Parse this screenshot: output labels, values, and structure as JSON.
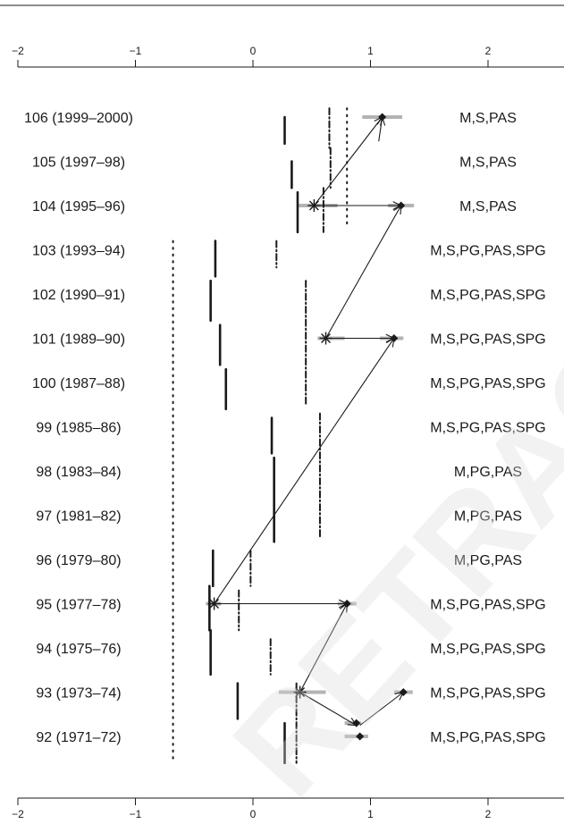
{
  "chart_data": {
    "type": "scatter",
    "title": "",
    "xlabel": "",
    "ylabel": "",
    "xlim": [
      -2,
      2.6
    ],
    "xticks": [
      -2,
      -1,
      0,
      1,
      2
    ],
    "rows": [
      {
        "label": "106 (1999–2000)",
        "passes": "M,S,PAS"
      },
      {
        "label": "105 (1997–98)",
        "passes": "M,S,PAS"
      },
      {
        "label": "104 (1995–96)",
        "passes": "M,S,PAS"
      },
      {
        "label": "103 (1993–94)",
        "passes": "M,S,PG,PAS,SPG"
      },
      {
        "label": "102 (1990–91)",
        "passes": "M,S,PG,PAS,SPG"
      },
      {
        "label": "101 (1989–90)",
        "passes": "M,S,PG,PAS,SPG"
      },
      {
        "label": "100 (1987–88)",
        "passes": "M,S,PG,PAS,SPG"
      },
      {
        "label": "99 (1985–86)",
        "passes": "M,S,PG,PAS,SPG"
      },
      {
        "label": "98 (1983–84)",
        "passes": "M,PG,PAS"
      },
      {
        "label": "97 (1981–82)",
        "passes": "M,PG,PAS"
      },
      {
        "label": "96 (1979–80)",
        "passes": "M,PG,PAS"
      },
      {
        "label": "95 (1977–78)",
        "passes": "M,S,PG,PAS,SPG"
      },
      {
        "label": "94 (1975–76)",
        "passes": "M,S,PG,PAS,SPG"
      },
      {
        "label": "93 (1973–74)",
        "passes": "M,S,PG,PAS,SPG"
      },
      {
        "label": "92 (1971–72)",
        "passes": "M,S,PG,PAS,SPG"
      }
    ],
    "segments": [
      {
        "style": "solid",
        "x": 0.27,
        "rows": [
          0,
          0.6
        ]
      },
      {
        "style": "solid",
        "x": 0.33,
        "rows": [
          1,
          1.6
        ]
      },
      {
        "style": "solid",
        "x": 0.38,
        "rows": [
          1.7,
          2.6
        ]
      },
      {
        "style": "solid",
        "x": -0.32,
        "rows": [
          2.8,
          3.6
        ]
      },
      {
        "style": "solid",
        "x": -0.36,
        "rows": [
          3.7,
          4.6
        ]
      },
      {
        "style": "solid",
        "x": -0.28,
        "rows": [
          4.7,
          5.6
        ]
      },
      {
        "style": "solid",
        "x": -0.23,
        "rows": [
          5.7,
          6.6
        ]
      },
      {
        "style": "solid",
        "x": 0.16,
        "rows": [
          6.8,
          7.6
        ]
      },
      {
        "style": "solid",
        "x": 0.18,
        "rows": [
          7.7,
          9.6
        ]
      },
      {
        "style": "solid",
        "x": -0.34,
        "rows": [
          9.8,
          10.6
        ]
      },
      {
        "style": "solid",
        "x": -0.37,
        "rows": [
          10.6,
          11.6
        ]
      },
      {
        "style": "solid",
        "x": -0.36,
        "rows": [
          11.6,
          12.6
        ]
      },
      {
        "style": "solid",
        "x": -0.13,
        "rows": [
          12.8,
          13.6
        ]
      },
      {
        "style": "solid",
        "x": 0.27,
        "rows": [
          13.7,
          14.6
        ]
      },
      {
        "style": "dashdot",
        "x": 0.65,
        "rows": [
          -0.2,
          0.7
        ]
      },
      {
        "style": "dashdot",
        "x": 0.66,
        "rows": [
          0.7,
          1.6
        ]
      },
      {
        "style": "dashdot",
        "x": 0.6,
        "rows": [
          1.6,
          2.6
        ]
      },
      {
        "style": "dashdot",
        "x": 0.2,
        "rows": [
          2.8,
          3.4
        ]
      },
      {
        "style": "dashdot",
        "x": 0.45,
        "rows": [
          3.7,
          6.5
        ]
      },
      {
        "style": "dashdot",
        "x": 0.57,
        "rows": [
          6.7,
          9.5
        ]
      },
      {
        "style": "dashdot",
        "x": -0.02,
        "rows": [
          9.8,
          10.6
        ]
      },
      {
        "style": "dashdot",
        "x": -0.12,
        "rows": [
          10.7,
          11.6
        ]
      },
      {
        "style": "dashdot",
        "x": 0.15,
        "rows": [
          11.8,
          12.6
        ]
      },
      {
        "style": "dashdot",
        "x": 0.37,
        "rows": [
          12.8,
          14.6
        ]
      },
      {
        "style": "dotted",
        "x": 0.8,
        "rows": [
          -0.2,
          2.5
        ]
      },
      {
        "style": "dotted",
        "x": -0.68,
        "rows": [
          2.8,
          14.6
        ]
      }
    ],
    "bands": [
      {
        "row": 0,
        "x": [
          0.93,
          1.27
        ]
      },
      {
        "row": 2,
        "x": [
          0.38,
          0.72
        ]
      },
      {
        "row": 2,
        "x": [
          1.15,
          1.37
        ]
      },
      {
        "row": 5,
        "x": [
          0.55,
          0.78
        ]
      },
      {
        "row": 5,
        "x": [
          1.08,
          1.28
        ]
      },
      {
        "row": 11,
        "x": [
          -0.4,
          -0.27
        ]
      },
      {
        "row": 11,
        "x": [
          0.72,
          0.88
        ]
      },
      {
        "row": 13,
        "x": [
          0.22,
          0.62
        ]
      },
      {
        "row": 13,
        "x": [
          1.2,
          1.36
        ]
      },
      {
        "row": 13.7,
        "x": [
          0.78,
          0.92
        ]
      },
      {
        "row": 14,
        "x": [
          0.78,
          0.98
        ]
      }
    ],
    "markers": [
      {
        "shape": "diamond",
        "x": 1.1,
        "row": 0
      },
      {
        "shape": "star",
        "x": 0.52,
        "row": 2
      },
      {
        "shape": "diamond",
        "x": 1.26,
        "row": 2
      },
      {
        "shape": "star",
        "x": 0.62,
        "row": 5
      },
      {
        "shape": "diamond",
        "x": 1.2,
        "row": 5
      },
      {
        "shape": "star",
        "x": -0.33,
        "row": 11
      },
      {
        "shape": "diamond",
        "x": 0.8,
        "row": 11
      },
      {
        "shape": "star",
        "x": 0.4,
        "row": 13
      },
      {
        "shape": "diamond",
        "x": 1.28,
        "row": 13
      },
      {
        "shape": "diamond",
        "x": 0.88,
        "row": 13.7
      },
      {
        "shape": "diamond",
        "x": 0.91,
        "row": 14
      }
    ],
    "arrows": [
      {
        "from": [
          0.91,
          13.75
        ],
        "to": [
          1.28,
          13
        ]
      },
      {
        "from": [
          0.4,
          13
        ],
        "to": [
          0.88,
          13.75
        ]
      },
      {
        "from": [
          0.4,
          13
        ],
        "to": [
          0.8,
          11
        ]
      },
      {
        "from": [
          -0.33,
          11
        ],
        "to": [
          0.8,
          11
        ]
      },
      {
        "from": [
          -0.33,
          11
        ],
        "to": [
          1.2,
          5
        ]
      },
      {
        "from": [
          0.62,
          5
        ],
        "to": [
          1.2,
          5
        ]
      },
      {
        "from": [
          0.62,
          5
        ],
        "to": [
          1.26,
          2
        ]
      },
      {
        "from": [
          0.52,
          2
        ],
        "to": [
          1.26,
          2
        ]
      },
      {
        "from": [
          0.52,
          2
        ],
        "to": [
          1.1,
          0
        ]
      },
      {
        "from": [
          1.07,
          0.55
        ],
        "to": [
          1.1,
          0
        ]
      }
    ],
    "grid": false,
    "legend": "none"
  },
  "watermark": "RETRACTED"
}
